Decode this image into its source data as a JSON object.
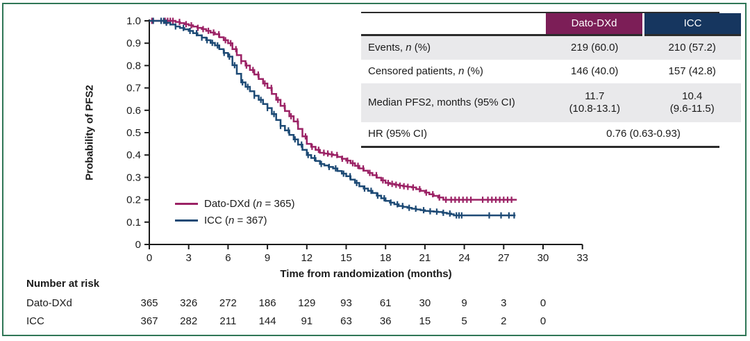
{
  "figure": {
    "border_color": "#2F7656",
    "background": "#ffffff"
  },
  "chart_data": {
    "type": "line",
    "subtype": "kaplan-meier-step",
    "title": "",
    "xlabel": "Time from randomization (months)",
    "ylabel": "Probability of PFS2",
    "xlim": [
      0,
      33
    ],
    "ylim": [
      0,
      1.0
    ],
    "grid": false,
    "legend_position": "inside-lower-left",
    "xticks": [
      0,
      3,
      6,
      9,
      12,
      15,
      18,
      21,
      24,
      27,
      30,
      33
    ],
    "xtick_labels": [
      "0",
      "3",
      "6",
      "9",
      "12",
      "15",
      "18",
      "21",
      "24",
      "27",
      "30",
      "33"
    ],
    "ytick_values": [
      0,
      0.1,
      0.2,
      0.3,
      0.4,
      0.5,
      0.6,
      0.7,
      0.8,
      0.9,
      1.0
    ],
    "ytick_labels": [
      "0",
      "0.1",
      "0.2",
      "0.3",
      "0.4",
      "0.5",
      "0.6",
      "0.7",
      "0.8",
      "0.9",
      "1.0"
    ],
    "axis_color": "#1a1a1a",
    "series": [
      {
        "name": "Dato-DXd",
        "n": 365,
        "legend_parts": [
          "Dato-DXd (",
          "n",
          " = 365)"
        ],
        "color": "#9B2265",
        "median_months": "11.7 (10.8-13.1)",
        "anchors": [
          [
            0,
            1.0
          ],
          [
            1.5,
            1.0
          ],
          [
            2,
            0.995
          ],
          [
            3,
            0.98
          ],
          [
            4,
            0.963
          ],
          [
            5,
            0.94
          ],
          [
            6,
            0.9
          ],
          [
            7,
            0.82
          ],
          [
            8,
            0.76
          ],
          [
            9,
            0.7
          ],
          [
            10,
            0.62
          ],
          [
            11,
            0.55
          ],
          [
            12,
            0.45
          ],
          [
            13,
            0.41
          ],
          [
            14,
            0.4
          ],
          [
            15,
            0.375
          ],
          [
            16,
            0.34
          ],
          [
            17,
            0.31
          ],
          [
            18,
            0.275
          ],
          [
            19,
            0.263
          ],
          [
            20,
            0.255
          ],
          [
            21,
            0.232
          ],
          [
            22,
            0.21
          ],
          [
            22.4,
            0.2
          ],
          [
            28,
            0.2
          ]
        ],
        "censor_times": [
          0.2,
          1.2,
          1.4,
          1.6,
          1.8,
          2.3,
          2.8,
          3.2,
          3.7,
          4.1,
          4.5,
          4.9,
          5.3,
          5.8,
          6.2,
          6.6,
          7.0,
          7.4,
          7.9,
          8.3,
          8.8,
          9.3,
          9.8,
          10.3,
          10.8,
          11.3,
          11.9,
          12.4,
          12.9,
          13.3,
          13.6,
          13.9,
          14.3,
          14.7,
          15.1,
          15.5,
          15.9,
          16.3,
          16.8,
          17.3,
          17.8,
          18.2,
          18.5,
          18.8,
          19.1,
          19.4,
          19.7,
          20.1,
          20.6,
          21.1,
          21.6,
          22.1,
          22.6,
          23.0,
          23.3,
          23.6,
          23.9,
          24.2,
          24.5,
          25.4,
          25.8,
          26.1,
          26.4,
          26.7,
          27.0,
          27.3,
          27.6
        ]
      },
      {
        "name": "ICC",
        "n": 367,
        "legend_parts": [
          "ICC (",
          "n",
          " = 367)"
        ],
        "color": "#1D4A75",
        "median_months": "10.4 (9.6-11.5)",
        "anchors": [
          [
            0,
            1.0
          ],
          [
            0.8,
            1.0
          ],
          [
            2,
            0.975
          ],
          [
            3,
            0.955
          ],
          [
            4,
            0.925
          ],
          [
            5,
            0.89
          ],
          [
            6,
            0.84
          ],
          [
            7,
            0.725
          ],
          [
            8,
            0.665
          ],
          [
            9,
            0.61
          ],
          [
            10,
            0.53
          ],
          [
            11,
            0.47
          ],
          [
            12,
            0.4
          ],
          [
            13,
            0.36
          ],
          [
            14,
            0.34
          ],
          [
            15,
            0.305
          ],
          [
            16,
            0.26
          ],
          [
            17,
            0.23
          ],
          [
            18,
            0.195
          ],
          [
            19,
            0.172
          ],
          [
            20,
            0.16
          ],
          [
            21,
            0.15
          ],
          [
            22,
            0.145
          ],
          [
            23,
            0.135
          ],
          [
            23.2,
            0.13
          ],
          [
            27.9,
            0.13
          ]
        ],
        "censor_times": [
          0.3,
          0.9,
          1.1,
          1.3,
          2.0,
          2.6,
          3.1,
          3.6,
          4.0,
          4.4,
          4.8,
          5.2,
          5.7,
          6.1,
          6.5,
          7.1,
          7.5,
          8.0,
          8.5,
          9.0,
          9.5,
          10.0,
          10.6,
          11.1,
          11.6,
          12.1,
          12.6,
          13.1,
          13.7,
          14.2,
          14.8,
          15.3,
          15.8,
          16.4,
          16.9,
          17.4,
          17.9,
          18.4,
          18.9,
          19.3,
          19.8,
          20.3,
          20.9,
          21.4,
          21.9,
          22.4,
          22.9,
          23.4,
          23.6,
          23.8,
          25.9,
          26.8,
          27.4,
          27.8
        ]
      }
    ]
  },
  "summary_table": {
    "header": {
      "blank": "",
      "col1": "Dato-DXd",
      "col2": "ICC",
      "col1_color": "#7C1E57",
      "col2_color": "#16365F"
    },
    "rows": [
      {
        "label_parts": [
          "Events, ",
          "n",
          " (%)"
        ],
        "values": [
          [
            "219 (60.0)"
          ],
          [
            "210 (57.2)"
          ]
        ],
        "shaded": true
      },
      {
        "label_parts": [
          "Censored patients, ",
          "n",
          " (%)"
        ],
        "values": [
          [
            "146 (40.0)"
          ],
          [
            "157 (42.8)"
          ]
        ],
        "shaded": false
      },
      {
        "label_parts": [
          "Median PFS2, months (95% CI)"
        ],
        "values": [
          [
            "11.7",
            "(10.8-13.1)"
          ],
          [
            "10.4",
            "(9.6-11.5)"
          ]
        ],
        "shaded": true,
        "tall": true
      },
      {
        "label_parts": [
          "HR (95% CI)"
        ],
        "merged_value": "0.76 (0.63-0.93)",
        "shaded": false
      }
    ]
  },
  "risk_table": {
    "title": "Number at risk",
    "times": [
      0,
      3,
      6,
      9,
      12,
      15,
      18,
      21,
      24,
      27,
      30
    ],
    "rows": [
      {
        "label": "Dato-DXd",
        "values": [
          365,
          326,
          272,
          186,
          129,
          93,
          61,
          30,
          9,
          3,
          0
        ]
      },
      {
        "label": "ICC",
        "values": [
          367,
          282,
          211,
          144,
          91,
          63,
          36,
          15,
          5,
          2,
          0
        ]
      }
    ]
  }
}
